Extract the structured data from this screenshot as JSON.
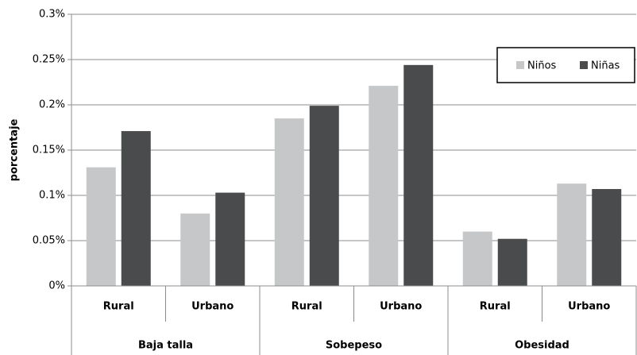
{
  "chart_data": {
    "type": "bar",
    "y_label": "porcentaje",
    "categories": [
      "Rural",
      "Urbano",
      "Rural",
      "Urbano",
      "Rural",
      "Urbano"
    ],
    "groups": [
      "Baja talla",
      "Sobepeso",
      "Obesidad"
    ],
    "series": [
      {
        "name": "Niños",
        "color": "#c6c7c8",
        "values": [
          0.131,
          0.08,
          0.185,
          0.221,
          0.06,
          0.113
        ]
      },
      {
        "name": "Niñas",
        "color": "#4a4b4d",
        "values": [
          0.171,
          0.103,
          0.199,
          0.244,
          0.052,
          0.107
        ]
      }
    ],
    "ylim": [
      0,
      0.3
    ],
    "yticks": [
      {
        "value": 0,
        "label": "0%"
      },
      {
        "value": 0.05,
        "label": "0.05%"
      },
      {
        "value": 0.1,
        "label": "0.1%"
      },
      {
        "value": 0.15,
        "label": "0.15%"
      },
      {
        "value": 0.2,
        "label": "0.2%"
      },
      {
        "value": 0.25,
        "label": "0.25%"
      },
      {
        "value": 0.3,
        "label": "0.3%"
      }
    ],
    "grid": true,
    "legend": "top-right"
  }
}
